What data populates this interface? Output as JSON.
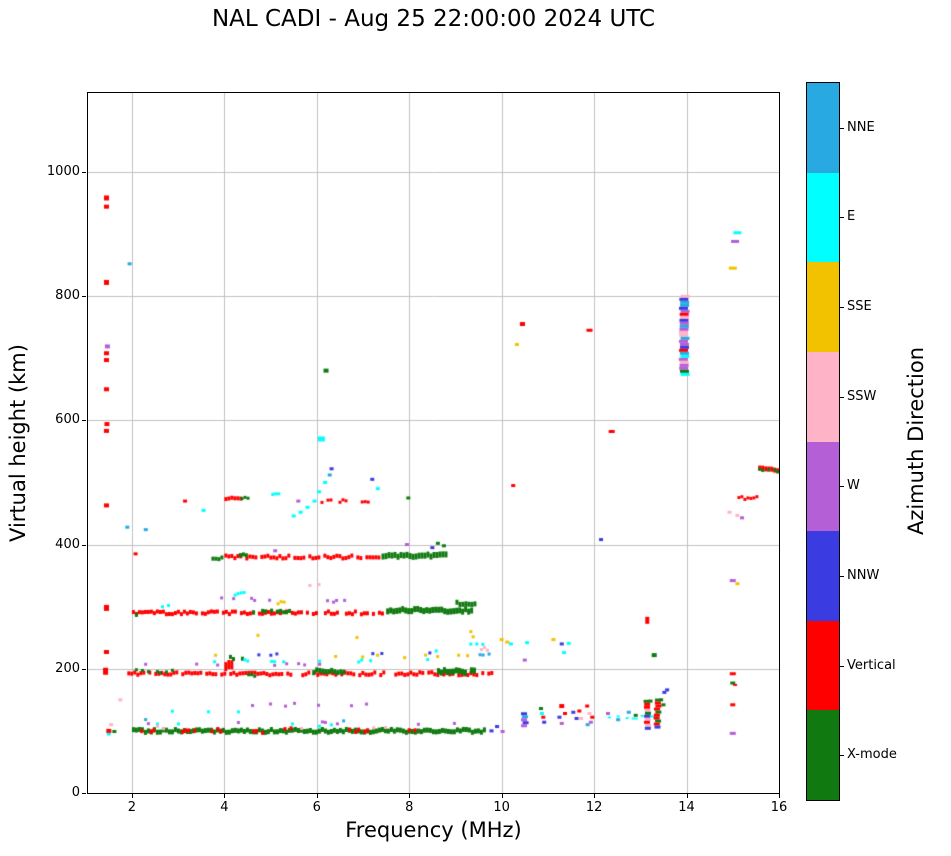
{
  "chart_data": {
    "type": "scatter",
    "title": "NAL CADI - Aug 25 22:00:00 2024 UTC",
    "xlabel": "Frequency (MHz)",
    "ylabel": "Virtual height (km)",
    "xlim": [
      1.05,
      16
    ],
    "ylim": [
      0,
      1127
    ],
    "xticks": [
      2,
      4,
      6,
      8,
      10,
      12,
      14,
      16
    ],
    "yticks": [
      0,
      200,
      400,
      600,
      800,
      1000
    ],
    "grid": true,
    "grid_color": "#c0c0c0",
    "marker": {
      "w": 4,
      "h": 3
    },
    "legend": {
      "title": "Azimuth Direction",
      "position": "right-colorbar",
      "categories": [
        {
          "label": "NNE",
          "color": "#29A9E1"
        },
        {
          "label": "E",
          "color": "#00FFFF"
        },
        {
          "label": "SSE",
          "color": "#F2C200"
        },
        {
          "label": "SSW",
          "color": "#FFB3C6"
        },
        {
          "label": "W",
          "color": "#B45FD6"
        },
        {
          "label": "NNW",
          "color": "#3A3BE0"
        },
        {
          "label": "Vertical",
          "color": "#FF0000"
        },
        {
          "label": "X-mode",
          "color": "#107A10"
        }
      ]
    },
    "segments": [
      {
        "c": "X-mode",
        "y": 100,
        "x0": 2.0,
        "x1": 9.65,
        "d": 1.0,
        "t": 5
      },
      {
        "c": "Vertical",
        "y": 101,
        "x0": 2.05,
        "x1": 2.6,
        "d": 0.7,
        "t": 4
      },
      {
        "c": "Vertical",
        "y": 99,
        "x0": 3.0,
        "x1": 3.35,
        "d": 0.7,
        "t": 4
      },
      {
        "c": "Vertical",
        "y": 101,
        "x0": 3.7,
        "x1": 3.95,
        "d": 0.7,
        "t": 4
      },
      {
        "c": "Vertical",
        "y": 99,
        "x0": 4.6,
        "x1": 4.85,
        "d": 0.7,
        "t": 4
      },
      {
        "c": "Vertical",
        "y": 102,
        "x0": 5.15,
        "x1": 5.45,
        "d": 0.7,
        "t": 4
      },
      {
        "c": "Vertical",
        "y": 100,
        "x0": 6.55,
        "x1": 7.1,
        "d": 0.7,
        "t": 4
      },
      {
        "c": "Vertical",
        "y": 101,
        "x0": 7.9,
        "x1": 8.1,
        "d": 0.7,
        "t": 4
      },
      {
        "c": "E",
        "y": 109,
        "x0": 2.0,
        "x1": 9.5,
        "d": 0.12,
        "t": 3
      },
      {
        "c": "W",
        "y": 113,
        "x0": 2.0,
        "x1": 9.0,
        "d": 0.08,
        "t": 3
      },
      {
        "c": "SSW",
        "y": 106,
        "x0": 2.2,
        "x1": 7.5,
        "d": 0.06,
        "t": 3
      },
      {
        "c": "NNE",
        "y": 117,
        "x0": 2.2,
        "x1": 8.0,
        "d": 0.05,
        "t": 3
      },
      {
        "c": "E",
        "y": 132,
        "x0": 2.0,
        "x1": 7.0,
        "d": 0.05,
        "t": 3
      },
      {
        "c": "SSW",
        "y": 152,
        "x0": 1.7,
        "x1": 6.0,
        "d": 0.04,
        "t": 3
      },
      {
        "c": "W",
        "y": 142,
        "x0": 2.5,
        "x1": 7.5,
        "d": 0.04,
        "t": 3
      },
      {
        "c": "SSE",
        "y": 162,
        "x0": 2.5,
        "x1": 6.5,
        "d": 0.03,
        "t": 3
      },
      {
        "c": "Vertical",
        "y": 192,
        "x0": 1.9,
        "x1": 9.9,
        "d": 0.85,
        "t": 4
      },
      {
        "c": "X-mode",
        "y": 196,
        "x0": 2.0,
        "x1": 2.9,
        "d": 0.5,
        "t": 3
      },
      {
        "c": "X-mode",
        "y": 190,
        "x0": 4.3,
        "x1": 4.7,
        "d": 0.7,
        "t": 3
      },
      {
        "c": "X-mode",
        "y": 196,
        "x0": 5.9,
        "x1": 6.6,
        "d": 0.9,
        "t": 5
      },
      {
        "c": "X-mode",
        "y": 196,
        "x0": 8.6,
        "x1": 9.4,
        "d": 0.95,
        "t": 6
      },
      {
        "c": "Vertical",
        "y": 205,
        "x0": 4.0,
        "x1": 4.18,
        "d": 1.0,
        "t": 9
      },
      {
        "c": "X-mode",
        "y": 218,
        "x0": 4.1,
        "x1": 4.38,
        "d": 0.6,
        "t": 4
      },
      {
        "c": "W",
        "y": 206,
        "x0": 2.2,
        "x1": 8.2,
        "d": 0.1,
        "t": 3
      },
      {
        "c": "E",
        "y": 213,
        "x0": 2.2,
        "x1": 9.0,
        "d": 0.1,
        "t": 3
      },
      {
        "c": "SSE",
        "y": 220,
        "x0": 3.0,
        "x1": 9.3,
        "d": 0.07,
        "t": 3
      },
      {
        "c": "NNW",
        "y": 224,
        "x0": 4.0,
        "x1": 8.6,
        "d": 0.06,
        "t": 3
      },
      {
        "c": "E",
        "y": 230,
        "x0": 5.5,
        "x1": 9.3,
        "d": 0.08,
        "t": 3
      },
      {
        "c": "SSE",
        "y": 252,
        "x0": 4.5,
        "x1": 7.0,
        "d": 0.04,
        "t": 3
      },
      {
        "c": "E",
        "y": 240,
        "x0": 9.3,
        "x1": 9.6,
        "d": 0.6,
        "t": 3
      },
      {
        "c": "SSE",
        "y": 250,
        "x0": 9.35,
        "x1": 9.55,
        "d": 0.6,
        "t": 3
      },
      {
        "c": "SSW",
        "y": 232,
        "x0": 9.4,
        "x1": 9.7,
        "d": 0.6,
        "t": 3
      },
      {
        "c": "NNE",
        "y": 222,
        "x0": 9.5,
        "x1": 9.75,
        "d": 0.6,
        "t": 3
      },
      {
        "c": "SSE",
        "y": 262,
        "x0": 9.3,
        "x1": 9.45,
        "d": 0.5,
        "t": 3
      },
      {
        "c": "Vertical",
        "y": 290,
        "x0": 2.0,
        "x1": 7.45,
        "d": 0.8,
        "t": 4
      },
      {
        "c": "X-mode",
        "y": 288,
        "x0": 2.0,
        "x1": 2.25,
        "d": 0.8,
        "t": 4
      },
      {
        "c": "X-mode",
        "y": 292,
        "x0": 4.6,
        "x1": 5.4,
        "d": 0.6,
        "t": 4
      },
      {
        "c": "X-mode",
        "y": 294,
        "x0": 7.5,
        "x1": 9.35,
        "d": 1.0,
        "t": 6
      },
      {
        "c": "X-mode",
        "y": 306,
        "x0": 9.0,
        "x1": 9.42,
        "d": 0.9,
        "t": 5
      },
      {
        "c": "E",
        "y": 301,
        "x0": 2.5,
        "x1": 6.0,
        "d": 0.06,
        "t": 3
      },
      {
        "c": "W",
        "y": 312,
        "x0": 3.0,
        "x1": 7.0,
        "d": 0.06,
        "t": 3
      },
      {
        "c": "SSW",
        "y": 336,
        "x0": 5.3,
        "x1": 6.1,
        "d": 0.35,
        "t": 3
      },
      {
        "c": "E",
        "y": 321,
        "x0": 4.2,
        "x1": 4.6,
        "d": 0.45,
        "t": 3
      },
      {
        "c": "SSE",
        "y": 306,
        "x0": 5.0,
        "x1": 5.3,
        "d": 0.4,
        "t": 3
      },
      {
        "c": "W",
        "y": 309,
        "x0": 6.2,
        "x1": 6.5,
        "d": 0.4,
        "t": 3
      },
      {
        "c": "Vertical",
        "y": 380,
        "x0": 4.0,
        "x1": 7.35,
        "d": 0.75,
        "t": 4
      },
      {
        "c": "X-mode",
        "y": 378,
        "x0": 3.72,
        "x1": 3.97,
        "d": 0.9,
        "t": 4
      },
      {
        "c": "X-mode",
        "y": 382,
        "x0": 7.4,
        "x1": 8.78,
        "d": 1.0,
        "t": 6
      },
      {
        "c": "X-mode",
        "y": 384,
        "x0": 4.25,
        "x1": 4.5,
        "d": 0.8,
        "t": 4
      },
      {
        "c": "Vertical",
        "y": 475,
        "x0": 4.0,
        "x1": 4.35,
        "d": 0.9,
        "t": 4
      },
      {
        "c": "X-mode",
        "y": 476,
        "x0": 4.35,
        "x1": 4.5,
        "d": 0.9,
        "t": 3
      },
      {
        "c": "E",
        "y": 480,
        "x0": 4.95,
        "x1": 5.15,
        "d": 0.8,
        "t": 3
      },
      {
        "c": "Vertical",
        "y": 470,
        "x0": 5.95,
        "x1": 6.6,
        "d": 0.6,
        "t": 3
      },
      {
        "c": "Vertical",
        "y": 470,
        "x0": 6.95,
        "x1": 7.1,
        "d": 0.7,
        "t": 3
      },
      {
        "c": "E",
        "y": 122,
        "x0": 12.1,
        "x1": 13.35,
        "d": 0.55,
        "t": 2
      },
      {
        "c": "Vertical",
        "y": 475,
        "x0": 15.1,
        "x1": 15.5,
        "d": 0.9,
        "t": 3
      },
      {
        "c": "Vertical",
        "y": 521,
        "x0": 15.55,
        "x1": 16.0,
        "d": 1.0,
        "t": 5
      },
      {
        "c": "X-mode",
        "y": 519,
        "x0": 15.55,
        "x1": 16.0,
        "d": 0.7,
        "t": 3
      }
    ],
    "columns": [
      {
        "x": 13.95,
        "y0": 676,
        "y1": 802,
        "w": 9,
        "colors": [
          "W",
          "NNW",
          "SSE",
          "E",
          "X-mode",
          "SSW",
          "NNE",
          "Vertical",
          "W",
          "W",
          "NNW"
        ]
      },
      {
        "x": 10.5,
        "y0": 106,
        "y1": 130,
        "w": 6,
        "colors": [
          "NNW",
          "NNW",
          "W",
          "NNE"
        ]
      },
      {
        "x": 13.15,
        "y0": 105,
        "y1": 150,
        "w": 6,
        "colors": [
          "Vertical",
          "Vertical",
          "X-mode",
          "W",
          "NNW",
          "SSW"
        ]
      },
      {
        "x": 13.37,
        "y0": 108,
        "y1": 152,
        "w": 6,
        "colors": [
          "Vertical",
          "X-mode",
          "NNW",
          "Vertical"
        ]
      }
    ],
    "points": [
      {
        "c": "Vertical",
        "x": 1.45,
        "y": 958,
        "w": 5,
        "h": 5
      },
      {
        "c": "Vertical",
        "x": 1.45,
        "y": 944,
        "w": 5,
        "h": 4
      },
      {
        "c": "Vertical",
        "x": 1.45,
        "y": 822,
        "w": 5,
        "h": 5
      },
      {
        "c": "W",
        "x": 1.47,
        "y": 719,
        "w": 5,
        "h": 4
      },
      {
        "c": "Vertical",
        "x": 1.45,
        "y": 708,
        "w": 5,
        "h": 4
      },
      {
        "c": "Vertical",
        "x": 1.45,
        "y": 697,
        "w": 5,
        "h": 4
      },
      {
        "c": "Vertical",
        "x": 1.45,
        "y": 650,
        "w": 5,
        "h": 4
      },
      {
        "c": "Vertical",
        "x": 1.46,
        "y": 594,
        "w": 5,
        "h": 4
      },
      {
        "c": "Vertical",
        "x": 1.45,
        "y": 583,
        "w": 5,
        "h": 4
      },
      {
        "c": "Vertical",
        "x": 1.45,
        "y": 463,
        "w": 5,
        "h": 4
      },
      {
        "c": "NNE",
        "x": 1.95,
        "y": 852
      },
      {
        "c": "NNE",
        "x": 1.9,
        "y": 428
      },
      {
        "c": "NNE",
        "x": 2.3,
        "y": 424
      },
      {
        "c": "Vertical",
        "x": 1.45,
        "y": 298,
        "w": 5,
        "h": 6
      },
      {
        "c": "Vertical",
        "x": 1.45,
        "y": 227,
        "w": 5,
        "h": 4
      },
      {
        "c": "Vertical",
        "x": 1.43,
        "y": 196,
        "w": 5,
        "h": 7
      },
      {
        "c": "SSW",
        "x": 1.75,
        "y": 150
      },
      {
        "c": "E",
        "x": 1.5,
        "y": 95
      },
      {
        "c": "Vertical",
        "x": 1.5,
        "y": 100,
        "w": 5,
        "h": 4
      },
      {
        "c": "X-mode",
        "x": 1.62,
        "y": 99
      },
      {
        "c": "SSW",
        "x": 1.55,
        "y": 110
      },
      {
        "c": "Vertical",
        "x": 2.08,
        "y": 385
      },
      {
        "c": "X-mode",
        "x": 6.2,
        "y": 680,
        "w": 5,
        "h": 4
      },
      {
        "c": "E",
        "x": 6.1,
        "y": 570,
        "w": 7,
        "h": 5
      },
      {
        "c": "E",
        "x": 5.5,
        "y": 446
      },
      {
        "c": "E",
        "x": 5.65,
        "y": 452
      },
      {
        "c": "E",
        "x": 5.8,
        "y": 460
      },
      {
        "c": "E",
        "x": 5.95,
        "y": 470
      },
      {
        "c": "E",
        "x": 6.05,
        "y": 485
      },
      {
        "c": "E",
        "x": 6.18,
        "y": 500
      },
      {
        "c": "NNE",
        "x": 6.28,
        "y": 512
      },
      {
        "c": "NNW",
        "x": 6.32,
        "y": 522
      },
      {
        "c": "NNW",
        "x": 7.2,
        "y": 505
      },
      {
        "c": "E",
        "x": 7.32,
        "y": 490
      },
      {
        "c": "W",
        "x": 5.6,
        "y": 470
      },
      {
        "c": "X-mode",
        "x": 7.98,
        "y": 475
      },
      {
        "c": "E",
        "x": 3.55,
        "y": 455
      },
      {
        "c": "Vertical",
        "x": 3.15,
        "y": 470
      },
      {
        "c": "NNW",
        "x": 8.5,
        "y": 395
      },
      {
        "c": "X-mode",
        "x": 8.62,
        "y": 402
      },
      {
        "c": "X-mode",
        "x": 8.75,
        "y": 398
      },
      {
        "c": "W",
        "x": 7.95,
        "y": 400
      },
      {
        "c": "W",
        "x": 5.1,
        "y": 390
      },
      {
        "c": "NNW",
        "x": 9.78,
        "y": 100
      },
      {
        "c": "NNW",
        "x": 9.9,
        "y": 107
      },
      {
        "c": "W",
        "x": 10.02,
        "y": 99
      },
      {
        "c": "Vertical",
        "x": 10.45,
        "y": 755,
        "w": 5,
        "h": 4
      },
      {
        "c": "SSE",
        "x": 10.33,
        "y": 722
      },
      {
        "c": "Vertical",
        "x": 11.9,
        "y": 745,
        "w": 6,
        "h": 3
      },
      {
        "c": "Vertical",
        "x": 10.25,
        "y": 495
      },
      {
        "c": "Vertical",
        "x": 12.38,
        "y": 582,
        "w": 6,
        "h": 3
      },
      {
        "c": "NNW",
        "x": 12.15,
        "y": 408
      },
      {
        "c": "Vertical",
        "x": 13.15,
        "y": 278,
        "w": 4,
        "h": 7
      },
      {
        "c": "X-mode",
        "x": 13.3,
        "y": 222,
        "w": 5,
        "h": 4
      },
      {
        "c": "SSE",
        "x": 10.0,
        "y": 247
      },
      {
        "c": "SSE",
        "x": 10.12,
        "y": 243
      },
      {
        "c": "E",
        "x": 10.2,
        "y": 240
      },
      {
        "c": "E",
        "x": 10.55,
        "y": 242
      },
      {
        "c": "W",
        "x": 10.5,
        "y": 214
      },
      {
        "c": "NNW",
        "x": 11.3,
        "y": 240
      },
      {
        "c": "E",
        "x": 11.45,
        "y": 241
      },
      {
        "c": "E",
        "x": 11.35,
        "y": 226
      },
      {
        "c": "SSE",
        "x": 11.12,
        "y": 247
      },
      {
        "c": "X-mode",
        "x": 10.85,
        "y": 136
      },
      {
        "c": "Vertical",
        "x": 10.9,
        "y": 122
      },
      {
        "c": "NNW",
        "x": 10.92,
        "y": 114
      },
      {
        "c": "E",
        "x": 10.87,
        "y": 128
      },
      {
        "c": "Vertical",
        "x": 11.3,
        "y": 140,
        "w": 5,
        "h": 4
      },
      {
        "c": "NNW",
        "x": 11.25,
        "y": 122
      },
      {
        "c": "W",
        "x": 11.3,
        "y": 112
      },
      {
        "c": "Vertical",
        "x": 11.37,
        "y": 128
      },
      {
        "c": "NNW",
        "x": 11.55,
        "y": 130
      },
      {
        "c": "NNW",
        "x": 11.62,
        "y": 120
      },
      {
        "c": "Vertical",
        "x": 11.68,
        "y": 132
      },
      {
        "c": "SSW",
        "x": 11.72,
        "y": 120
      },
      {
        "c": "Vertical",
        "x": 11.85,
        "y": 140
      },
      {
        "c": "SSW",
        "x": 11.9,
        "y": 128
      },
      {
        "c": "W",
        "x": 11.93,
        "y": 114
      },
      {
        "c": "Vertical",
        "x": 11.96,
        "y": 122
      },
      {
        "c": "NNE",
        "x": 11.86,
        "y": 110
      },
      {
        "c": "W",
        "x": 12.3,
        "y": 128
      },
      {
        "c": "NNE",
        "x": 12.52,
        "y": 118
      },
      {
        "c": "X-mode",
        "x": 12.9,
        "y": 125
      },
      {
        "c": "NNE",
        "x": 12.75,
        "y": 130
      },
      {
        "c": "X-mode",
        "x": 13.45,
        "y": 150
      },
      {
        "c": "X-mode",
        "x": 13.5,
        "y": 142
      },
      {
        "c": "NNW",
        "x": 13.52,
        "y": 162
      },
      {
        "c": "NNW",
        "x": 13.58,
        "y": 166
      },
      {
        "c": "X-mode",
        "x": 13.22,
        "y": 148
      },
      {
        "c": "E",
        "x": 15.1,
        "y": 902,
        "w": 8,
        "h": 3
      },
      {
        "c": "W",
        "x": 15.05,
        "y": 888,
        "w": 8,
        "h": 3
      },
      {
        "c": "SSE",
        "x": 15.0,
        "y": 845,
        "w": 8,
        "h": 3
      },
      {
        "c": "SSW",
        "x": 14.93,
        "y": 452
      },
      {
        "c": "SSW",
        "x": 15.1,
        "y": 447
      },
      {
        "c": "W",
        "x": 15.2,
        "y": 443
      },
      {
        "c": "W",
        "x": 15.0,
        "y": 342,
        "w": 6,
        "h": 3
      },
      {
        "c": "SSE",
        "x": 15.1,
        "y": 337
      },
      {
        "c": "Vertical",
        "x": 15.0,
        "y": 192,
        "w": 6,
        "h": 3
      },
      {
        "c": "X-mode",
        "x": 15.0,
        "y": 177,
        "w": 5,
        "h": 3
      },
      {
        "c": "Vertical",
        "x": 15.05,
        "y": 174,
        "w": 4,
        "h": 2
      },
      {
        "c": "Vertical",
        "x": 15.0,
        "y": 142,
        "w": 5,
        "h": 3
      },
      {
        "c": "W",
        "x": 15.0,
        "y": 96,
        "w": 6,
        "h": 3
      }
    ]
  }
}
